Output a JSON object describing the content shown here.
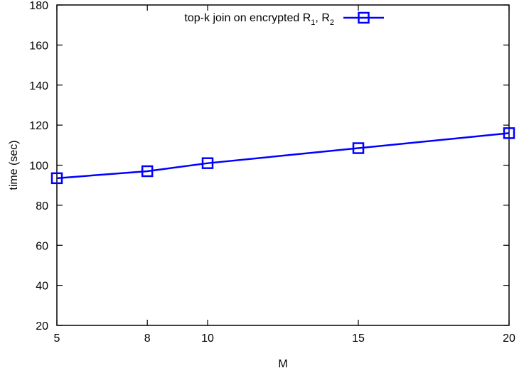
{
  "chart_data": {
    "type": "line",
    "xlabel": "M",
    "ylabel": "time (sec)",
    "x_ticks": [
      5,
      8,
      10,
      15,
      20
    ],
    "y_ticks": [
      20,
      40,
      60,
      80,
      100,
      120,
      140,
      160,
      180
    ],
    "ylim": [
      20,
      180
    ],
    "grid": false,
    "legend": {
      "placement": "top-center",
      "prefix": "top-k join on encrypted R",
      "sub1": "1",
      "separator": ", R",
      "sub2": "2"
    },
    "series": [
      {
        "name": "top-k join on encrypted R1, R2",
        "color": "#0000ff",
        "marker": "square",
        "x": [
          5,
          8,
          10,
          15,
          20
        ],
        "y": [
          93.5,
          97,
          101,
          108.5,
          116
        ]
      }
    ]
  }
}
